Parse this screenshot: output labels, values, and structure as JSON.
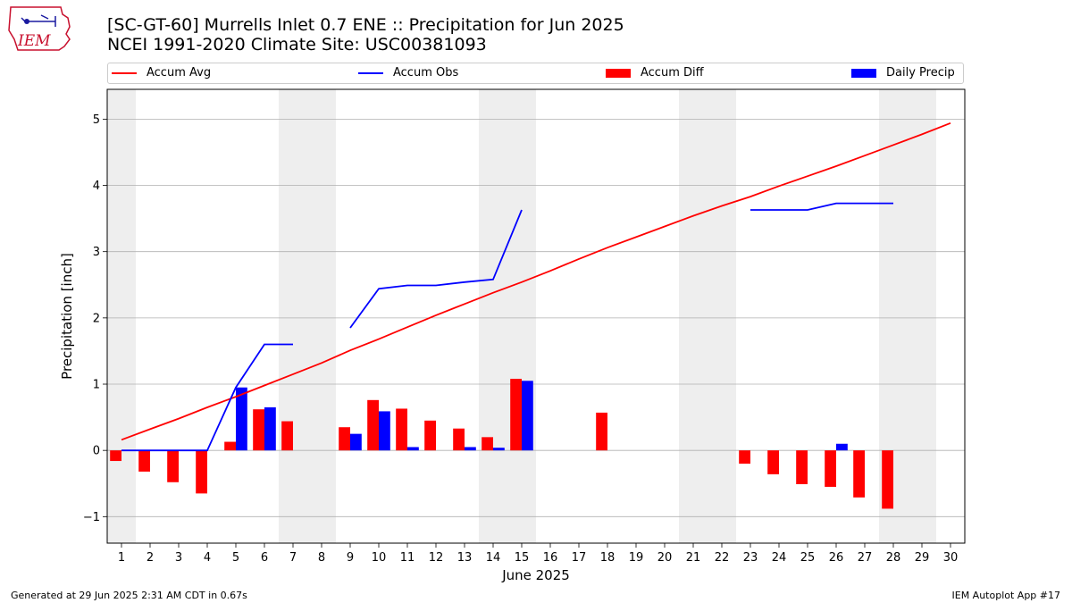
{
  "title_line1": "[SC-GT-60] Murrells Inlet 0.7 ENE :: Precipitation for Jun 2025",
  "title_line2": "NCEI 1991-2020 Climate Site: USC00381093",
  "footer_left": "Generated at 29 Jun 2025 2:31 AM CDT in 0.67s",
  "footer_right": "IEM Autoplot App #17",
  "logo_text": "IEM",
  "colors": {
    "accum_avg": "#ff0000",
    "accum_obs": "#0000ff",
    "accum_diff": "#ff0000",
    "daily_precip": "#0000ff",
    "weekend_shade": "#eeeeee",
    "grid": "#b0b0b0"
  },
  "legend": [
    {
      "label": "Accum Avg",
      "kind": "line",
      "color": "#ff0000"
    },
    {
      "label": "Accum Obs",
      "kind": "line",
      "color": "#0000ff"
    },
    {
      "label": "Accum Diff",
      "kind": "box",
      "color": "#ff0000"
    },
    {
      "label": "Daily Precip",
      "kind": "box",
      "color": "#0000ff"
    }
  ],
  "chart_data": {
    "type": "bar",
    "title": "[SC-GT-60] Murrells Inlet 0.7 ENE :: Precipitation for Jun 2025",
    "xlabel": "June 2025",
    "ylabel": "Precipitation [inch]",
    "xlim": [
      0.5,
      30.5
    ],
    "ylim": [
      -1.4,
      5.45
    ],
    "y_ticks": [
      -1,
      0,
      1,
      2,
      3,
      4,
      5
    ],
    "y_tick_labels": [
      "−1",
      "0",
      "1",
      "2",
      "3",
      "4",
      "5"
    ],
    "x_ticks": [
      1,
      2,
      3,
      4,
      5,
      6,
      7,
      8,
      9,
      10,
      11,
      12,
      13,
      14,
      15,
      16,
      17,
      18,
      19,
      20,
      21,
      22,
      23,
      24,
      25,
      26,
      27,
      28,
      29,
      30
    ],
    "grid": "horizontal",
    "legend_position": "top",
    "weekend_shading": [
      [
        0.5,
        1.5
      ],
      [
        6.5,
        8.5
      ],
      [
        13.5,
        15.5
      ],
      [
        20.5,
        22.5
      ],
      [
        27.5,
        29.5
      ]
    ],
    "series": [
      {
        "name": "Accum Avg",
        "type": "line",
        "color": "#ff0000",
        "x": [
          1,
          2,
          3,
          4,
          5,
          6,
          7,
          8,
          9,
          10,
          11,
          12,
          13,
          14,
          15,
          16,
          17,
          18,
          19,
          20,
          21,
          22,
          23,
          24,
          25,
          26,
          27,
          28,
          29,
          30
        ],
        "values": [
          0.16,
          0.32,
          0.48,
          0.65,
          0.81,
          0.98,
          1.15,
          1.32,
          1.51,
          1.68,
          1.86,
          2.04,
          2.21,
          2.38,
          2.54,
          2.71,
          2.89,
          3.06,
          3.22,
          3.38,
          3.54,
          3.69,
          3.83,
          3.99,
          4.14,
          4.29,
          4.45,
          4.61,
          4.77,
          4.94
        ]
      },
      {
        "name": "Accum Obs",
        "type": "line",
        "color": "#0000ff",
        "segments": [
          {
            "x": [
              1,
              2,
              3,
              4,
              5,
              6,
              7
            ],
            "values": [
              0.0,
              0.0,
              0.0,
              0.0,
              0.95,
              1.6,
              1.6
            ]
          },
          {
            "x": [
              9,
              10,
              11,
              12,
              13,
              14,
              15
            ],
            "values": [
              1.85,
              2.44,
              2.49,
              2.49,
              2.54,
              2.58,
              3.63
            ]
          },
          {
            "x": [
              23,
              24,
              25,
              26,
              27,
              28
            ],
            "values": [
              3.63,
              3.63,
              3.63,
              3.73,
              3.73,
              3.73
            ]
          }
        ]
      },
      {
        "name": "Accum Diff",
        "type": "bar",
        "color": "#ff0000",
        "x": [
          1,
          2,
          3,
          4,
          5,
          6,
          7,
          9,
          10,
          11,
          12,
          13,
          14,
          15,
          18,
          23,
          24,
          25,
          26,
          27,
          28
        ],
        "values": [
          -0.16,
          -0.32,
          -0.48,
          -0.65,
          0.13,
          0.62,
          0.44,
          0.35,
          0.76,
          0.63,
          0.45,
          0.33,
          0.2,
          1.08,
          0.57,
          -0.2,
          -0.36,
          -0.51,
          -0.55,
          -0.71,
          -0.88
        ]
      },
      {
        "name": "Daily Precip",
        "type": "bar",
        "color": "#0000ff",
        "x": [
          5,
          6,
          9,
          10,
          11,
          13,
          14,
          15,
          26
        ],
        "values": [
          0.95,
          0.65,
          0.25,
          0.59,
          0.05,
          0.05,
          0.04,
          1.05,
          0.1
        ]
      }
    ]
  }
}
